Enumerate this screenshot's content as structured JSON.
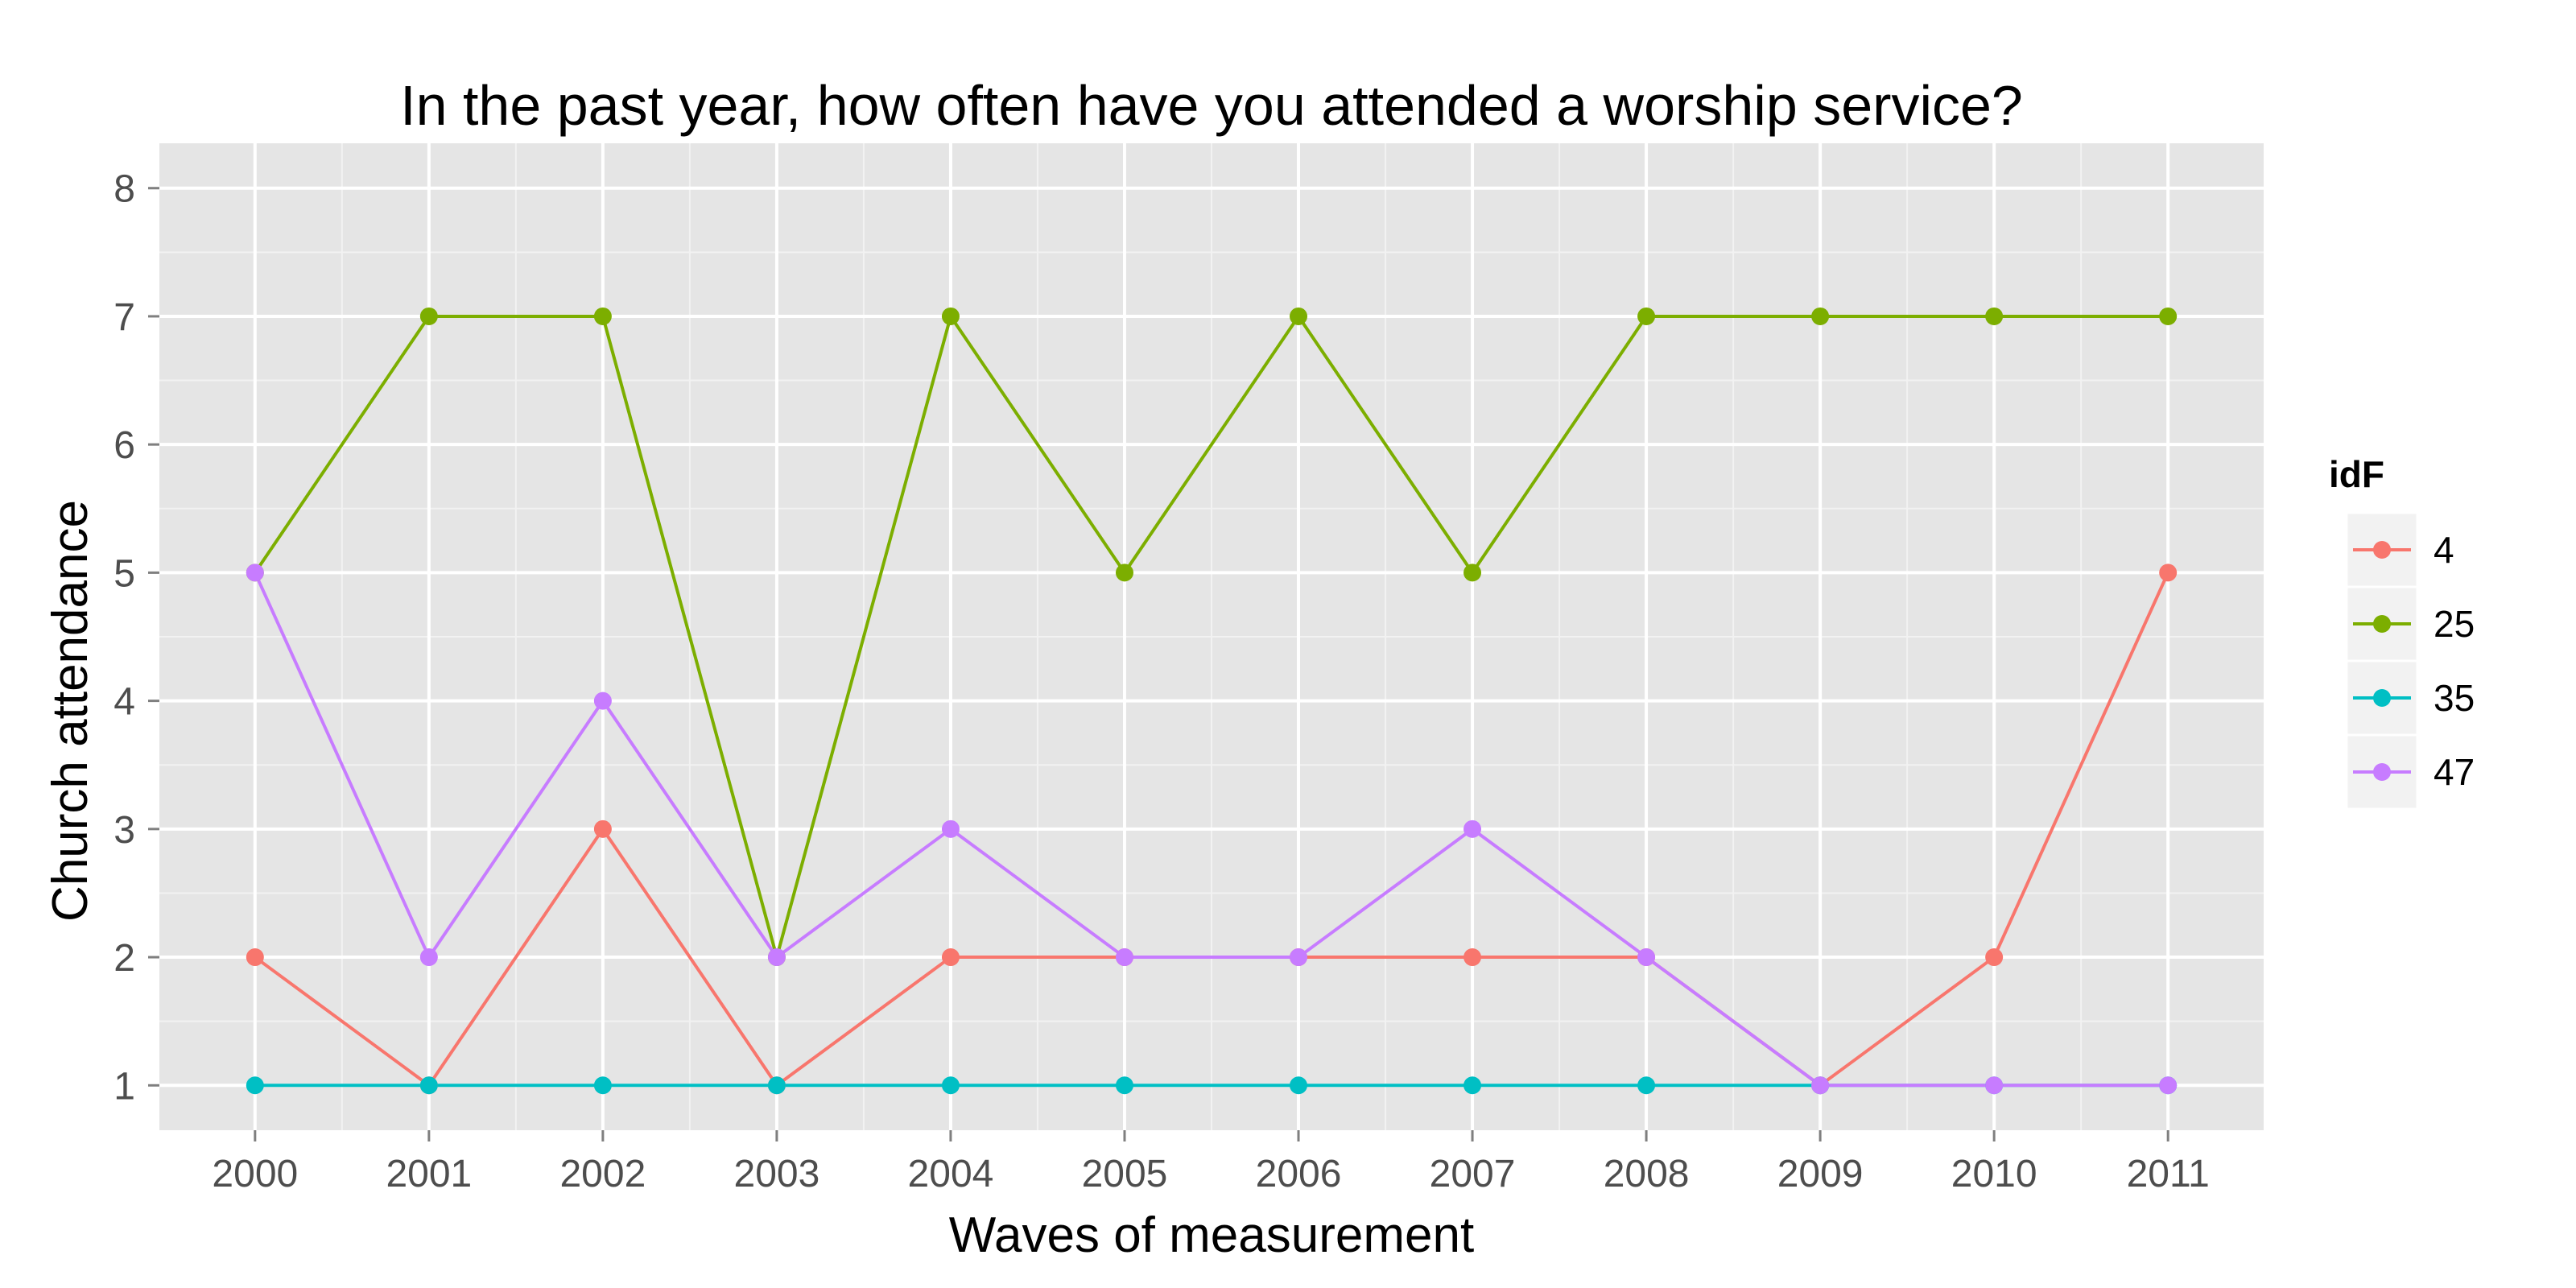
{
  "chart_data": {
    "type": "line",
    "title": "In the past year, how often have you attended a worship service?",
    "xlabel": "Waves of measurement",
    "ylabel": "Church attendance",
    "x": [
      2000,
      2001,
      2002,
      2003,
      2004,
      2005,
      2006,
      2007,
      2008,
      2009,
      2010,
      2011
    ],
    "xlim": [
      1999.45,
      2011.55
    ],
    "ylim": [
      0.65,
      8.35
    ],
    "yticks": [
      1,
      2,
      3,
      4,
      5,
      6,
      7,
      8
    ],
    "grid": true,
    "background": "#e5e5e5",
    "legend": {
      "title": "idF",
      "position": "right"
    },
    "series": [
      {
        "name": "4",
        "color": "#f8766d",
        "values": [
          2,
          1,
          3,
          1,
          2,
          2,
          2,
          2,
          2,
          1,
          2,
          5
        ]
      },
      {
        "name": "25",
        "color": "#7cae00",
        "values": [
          5,
          7,
          7,
          2,
          7,
          5,
          7,
          5,
          7,
          7,
          7,
          7
        ]
      },
      {
        "name": "35",
        "color": "#00bfc4",
        "values": [
          1,
          1,
          1,
          1,
          1,
          1,
          1,
          1,
          1,
          1,
          1,
          1
        ]
      },
      {
        "name": "47",
        "color": "#c77cff",
        "values": [
          5,
          2,
          4,
          2,
          3,
          2,
          2,
          3,
          2,
          1,
          1,
          1
        ]
      }
    ]
  }
}
